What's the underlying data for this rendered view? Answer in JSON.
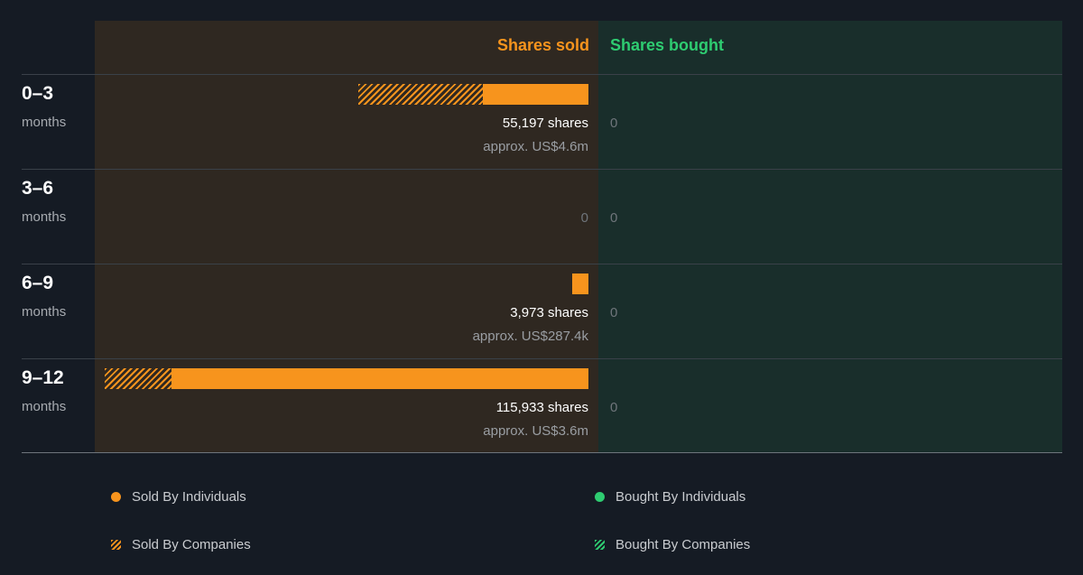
{
  "colors": {
    "sold": "#f7941d",
    "bought": "#2ecc71",
    "sold_panel": "#2f2821",
    "bought_panel": "#192e2b"
  },
  "chart_data": {
    "type": "bar",
    "orientation": "horizontal",
    "title": "",
    "header_sold": "Shares sold",
    "header_bought": "Shares bought",
    "categories": [
      {
        "range": "0–3",
        "unit": "months"
      },
      {
        "range": "3–6",
        "unit": "months"
      },
      {
        "range": "6–9",
        "unit": "months"
      },
      {
        "range": "9–12",
        "unit": "months"
      }
    ],
    "sold": [
      {
        "shares_label": "55,197 shares",
        "approx_label": "approx. US$4.6m",
        "individuals": 25300,
        "companies": 29897
      },
      {
        "zero_label": "0",
        "individuals": 0,
        "companies": 0
      },
      {
        "shares_label": "3,973 shares",
        "approx_label": "approx. US$287.4k",
        "individuals": 3973,
        "companies": 0
      },
      {
        "shares_label": "115,933 shares",
        "approx_label": "approx. US$3.6m",
        "individuals": 100033,
        "companies": 15900
      }
    ],
    "bought": [
      {
        "zero_label": "0",
        "value": 0
      },
      {
        "zero_label": "0",
        "value": 0
      },
      {
        "zero_label": "0",
        "value": 0
      },
      {
        "zero_label": "0",
        "value": 0
      }
    ],
    "max_shares": 115933,
    "legend": [
      {
        "label": "Sold By Individuals",
        "style": "dot",
        "color": "#f7941d"
      },
      {
        "label": "Bought By Individuals",
        "style": "dot",
        "color": "#2ecc71"
      },
      {
        "label": "Sold By Companies",
        "style": "hatch",
        "color": "#f7941d"
      },
      {
        "label": "Bought By Companies",
        "style": "hatch",
        "color": "#2ecc71"
      }
    ]
  }
}
